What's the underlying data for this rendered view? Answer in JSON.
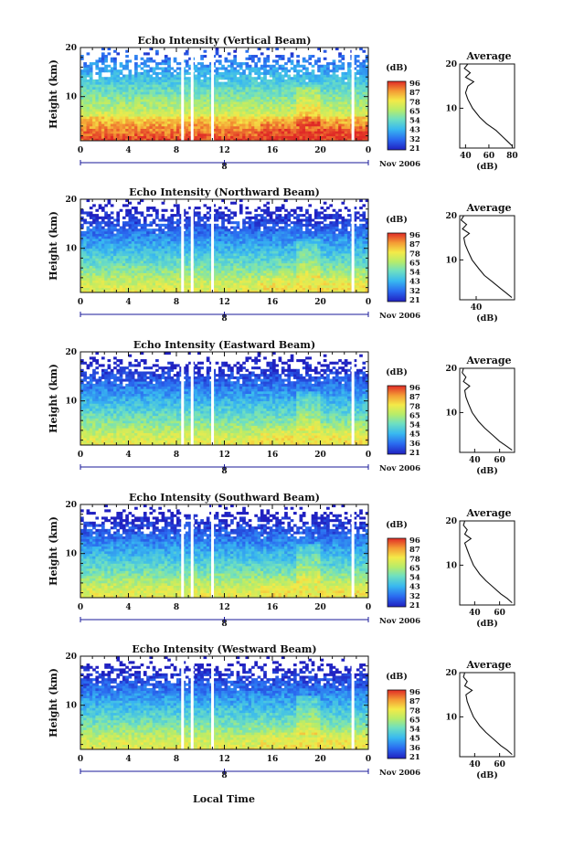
{
  "figure": {
    "xlabel": "Local Time",
    "date_label": "Nov 2006",
    "date_day": "8",
    "colorbar_unit": "(dB)",
    "colorbar_ticks": [
      [
        "96",
        "87",
        "78",
        "65",
        "54",
        "43",
        "32",
        "21"
      ],
      [
        "96",
        "87",
        "78",
        "65",
        "54",
        "43",
        "32",
        "21"
      ],
      [
        "96",
        "87",
        "78",
        "65",
        "54",
        "45",
        "36",
        "21"
      ],
      [
        "96",
        "87",
        "78",
        "65",
        "54",
        "43",
        "32",
        "21"
      ],
      [
        "96",
        "87",
        "78",
        "65",
        "54",
        "45",
        "36",
        "21"
      ]
    ],
    "colors": {
      "blue": "#2a2ad8",
      "cyan": "#3ab4ee",
      "green": "#7fd87f",
      "yellow": "#f2e64a",
      "orange": "#f39a3a",
      "red": "#d82a2a"
    }
  },
  "chart_data": [
    {
      "type": "heatmap",
      "title": "Echo Intensity (Vertical Beam)",
      "ylabel": "Height (km)",
      "x_ticks": [
        "0",
        "4",
        "8",
        "12",
        "16",
        "20",
        "0"
      ],
      "y_ticks": [
        "10",
        "20"
      ],
      "xlim": [
        0,
        24
      ],
      "ylim": [
        1,
        20
      ],
      "color_range_dB": [
        21,
        96
      ],
      "profile": {
        "title": "Average",
        "xlabel": "(dB)",
        "x_ticks": [
          "40",
          "60",
          "80"
        ],
        "xlim": [
          35,
          82
        ],
        "height_km": [
          1.5,
          2.5,
          3.5,
          5,
          6.5,
          8,
          10,
          12,
          13.5,
          15,
          16,
          17,
          18,
          19,
          20
        ],
        "value_dB": [
          80,
          76,
          72,
          66,
          58,
          52,
          46,
          42,
          40,
          42,
          47,
          40,
          44,
          39,
          42
        ]
      }
    },
    {
      "type": "heatmap",
      "title": "Echo Intensity (Northward Beam)",
      "ylabel": "Height (km)",
      "x_ticks": [
        "0",
        "4",
        "8",
        "12",
        "16",
        "20",
        "0"
      ],
      "y_ticks": [
        "10",
        "20"
      ],
      "xlim": [
        0,
        24
      ],
      "ylim": [
        1,
        20
      ],
      "color_range_dB": [
        21,
        96
      ],
      "profile": {
        "title": "Average",
        "xlabel": "(dB)",
        "x_ticks": [
          "40"
        ],
        "xlim": [
          28,
          68
        ],
        "height_km": [
          1.5,
          2.5,
          3.5,
          5,
          6.5,
          8,
          10,
          12,
          13.5,
          15,
          16,
          17,
          18,
          19,
          20
        ],
        "value_dB": [
          66,
          62,
          58,
          52,
          46,
          42,
          37,
          34,
          32,
          31,
          35,
          30,
          33,
          29,
          31
        ]
      }
    },
    {
      "type": "heatmap",
      "title": "Echo Intensity (Eastward Beam)",
      "ylabel": "Height (km)",
      "x_ticks": [
        "0",
        "4",
        "8",
        "12",
        "16",
        "20",
        "0"
      ],
      "y_ticks": [
        "10",
        "20"
      ],
      "xlim": [
        0,
        24
      ],
      "ylim": [
        1,
        20
      ],
      "color_range_dB": [
        21,
        96
      ],
      "profile": {
        "title": "Average",
        "xlabel": "(dB)",
        "x_ticks": [
          "40",
          "60"
        ],
        "xlim": [
          28,
          72
        ],
        "height_km": [
          1.5,
          2.5,
          3.5,
          5,
          6.5,
          8,
          10,
          12,
          13.5,
          15,
          16,
          17,
          18,
          19,
          20
        ],
        "value_dB": [
          70,
          65,
          60,
          54,
          48,
          43,
          38,
          35,
          33,
          32,
          36,
          31,
          33,
          30,
          31
        ]
      }
    },
    {
      "type": "heatmap",
      "title": "Echo Intensity (Southward Beam)",
      "ylabel": "Height (km)",
      "x_ticks": [
        "0",
        "4",
        "8",
        "12",
        "16",
        "20",
        "0"
      ],
      "y_ticks": [
        "10",
        "20"
      ],
      "xlim": [
        0,
        24
      ],
      "ylim": [
        1,
        20
      ],
      "color_range_dB": [
        21,
        96
      ],
      "profile": {
        "title": "Average",
        "xlabel": "(dB)",
        "x_ticks": [
          "40",
          "60"
        ],
        "xlim": [
          28,
          72
        ],
        "height_km": [
          1.5,
          2.5,
          3.5,
          5,
          6.5,
          8,
          10,
          12,
          13.5,
          15,
          16,
          17,
          18,
          19,
          20
        ],
        "value_dB": [
          70,
          66,
          61,
          55,
          49,
          44,
          39,
          36,
          34,
          32,
          37,
          32,
          34,
          31,
          32
        ]
      }
    },
    {
      "type": "heatmap",
      "title": "Echo Intensity (Westward Beam)",
      "ylabel": "Height (km)",
      "x_ticks": [
        "0",
        "4",
        "8",
        "12",
        "16",
        "20",
        "0"
      ],
      "y_ticks": [
        "10",
        "20"
      ],
      "xlim": [
        0,
        24
      ],
      "ylim": [
        1,
        20
      ],
      "color_range_dB": [
        21,
        96
      ],
      "profile": {
        "title": "Average",
        "xlabel": "(dB)",
        "x_ticks": [
          "40",
          "60"
        ],
        "xlim": [
          28,
          72
        ],
        "height_km": [
          1.5,
          2.5,
          3.5,
          5,
          6.5,
          8,
          10,
          12,
          13.5,
          15,
          16,
          17,
          18,
          19,
          20
        ],
        "value_dB": [
          70,
          66,
          61,
          55,
          49,
          44,
          39,
          36,
          34,
          33,
          38,
          32,
          34,
          31,
          32
        ]
      }
    }
  ]
}
